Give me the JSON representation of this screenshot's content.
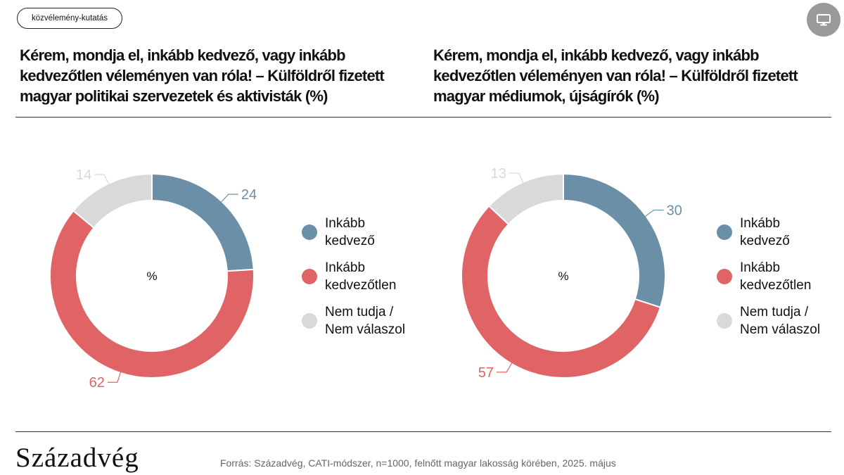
{
  "header": {
    "tag_label": "közvélemény-kutatás",
    "device_icon": "monitor-icon"
  },
  "footer": {
    "logo_text": "Századvég",
    "source": "Forrás: Századvég, CATI-módszer, n=1000, felnőtt magyar lakosság körében, 2025. május"
  },
  "colors": {
    "favorable": "#6a8fa6",
    "unfavorable": "#e06466",
    "dont_know": "#d9d9d9"
  },
  "chart_data": [
    {
      "type": "pie",
      "style": "donut",
      "title": "Kérem, mondja el, inkább kedvező, vagy inkább kedvezőtlen véleményen van róla! – Külföldről fizetett magyar politikai szervezetek és aktivisták (%)",
      "center_label": "%",
      "categories": [
        "Inkább kedvező",
        "Inkább kedvezőtlen",
        "Nem tudja / Nem válaszol"
      ],
      "legend_labels": [
        "Inkább\nkedvező",
        "Inkább\nkedvezőtlen",
        "Nem tudja /\nNem válaszol"
      ],
      "values": [
        24,
        62,
        14
      ],
      "legend_position": "right"
    },
    {
      "type": "pie",
      "style": "donut",
      "title": "Kérem, mondja el, inkább kedvező, vagy inkább kedvezőtlen véleményen van róla! – Külföldről fizetett magyar médiumok, újságírók (%)",
      "center_label": "%",
      "categories": [
        "Inkább kedvező",
        "Inkább kedvezőtlen",
        "Nem tudja / Nem válaszol"
      ],
      "legend_labels": [
        "Inkább\nkedvező",
        "Inkább\nkedvezőtlen",
        "Nem tudja /\nNem válaszol"
      ],
      "values": [
        30,
        57,
        13
      ],
      "legend_position": "right"
    }
  ]
}
